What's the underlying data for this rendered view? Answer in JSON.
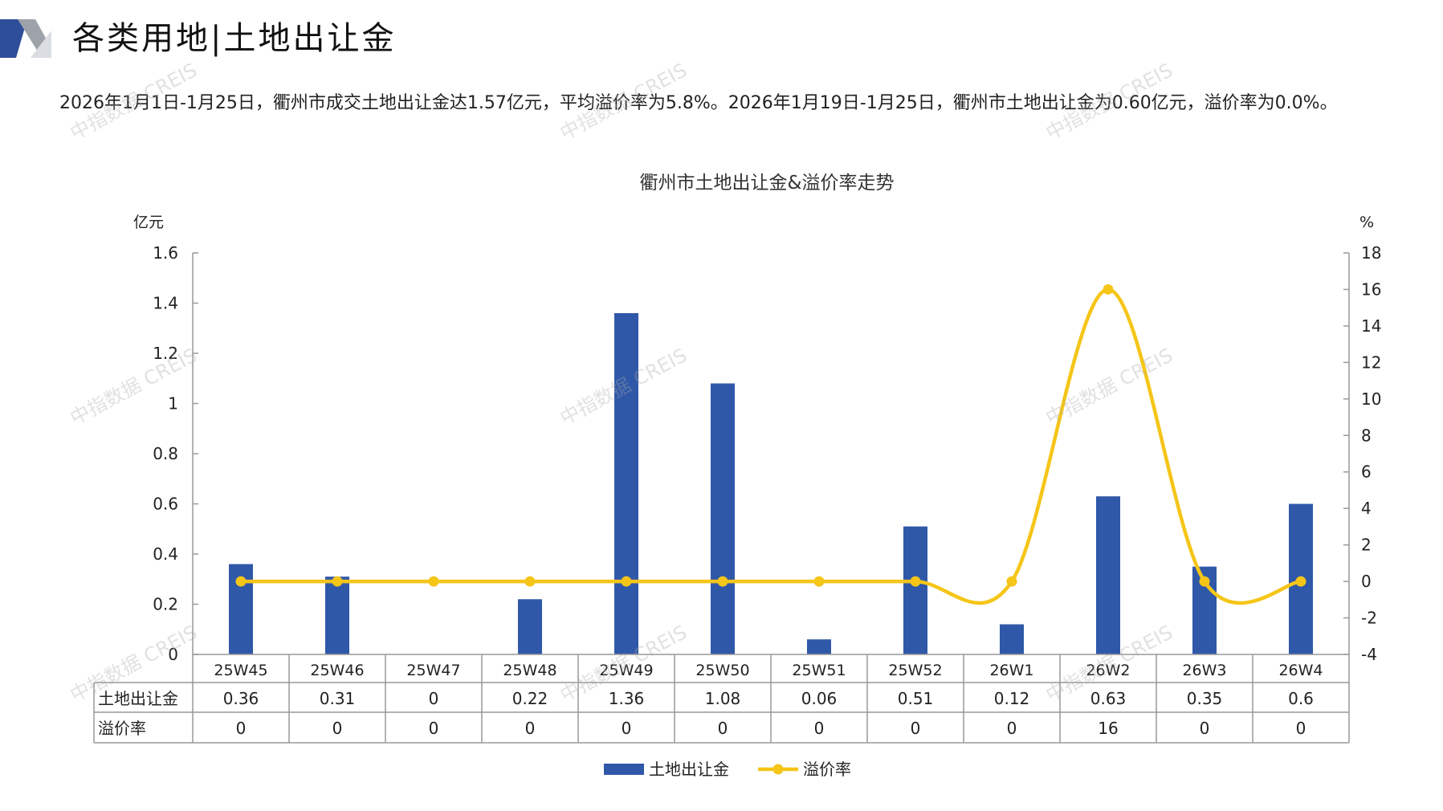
{
  "header": {
    "title": "各类用地|土地出让金"
  },
  "summary": {
    "text": "2026年1月1日-1月25日，衢州市成交土地出让金达1.57亿元，平均溢价率为5.8%。2026年1月19日-1月25日，衢州市土地出让金为0.60亿元，溢价率为0.0%。"
  },
  "watermark": {
    "text": "中指数据 CREIS"
  },
  "colors": {
    "bar": "#2F58A8",
    "line": "#F5C518",
    "axis": "#999999",
    "logo_dark": "#2F4E9A",
    "logo_grey": "#9EA3AA"
  },
  "chart_data": {
    "type": "bar",
    "title": "衢州市土地出让金&溢价率走势",
    "y_left_label": "亿元",
    "y_right_label": "%",
    "y_left_range": [
      0,
      1.6
    ],
    "y_left_ticks": [
      "1.6",
      "1.4",
      "1.2",
      "1",
      "0.8",
      "0.6",
      "0.4",
      "0.2",
      "0"
    ],
    "y_right_range": [
      -4,
      18
    ],
    "y_right_ticks": [
      "18",
      "16",
      "14",
      "12",
      "10",
      "8",
      "6",
      "4",
      "2",
      "0",
      "-2",
      "-4"
    ],
    "categories": [
      "25W45",
      "25W46",
      "25W47",
      "25W48",
      "25W49",
      "25W50",
      "25W51",
      "25W52",
      "26W1",
      "26W2",
      "26W3",
      "26W4"
    ],
    "series": [
      {
        "name": "土地出让金",
        "kind": "bar",
        "axis": "left",
        "values": [
          0.36,
          0.31,
          0,
          0.22,
          1.36,
          1.08,
          0.06,
          0.51,
          0.12,
          0.63,
          0.35,
          0.6
        ],
        "labels": [
          "0.36",
          "0.31",
          "0",
          "0.22",
          "1.36",
          "1.08",
          "0.06",
          "0.51",
          "0.12",
          "0.63",
          "0.35",
          "0.6"
        ]
      },
      {
        "name": "溢价率",
        "kind": "smooth-line",
        "axis": "right",
        "values": [
          0,
          0,
          0,
          0,
          0,
          0,
          0,
          0,
          0,
          16,
          0,
          0
        ],
        "labels": [
          "0",
          "0",
          "0",
          "0",
          "0",
          "0",
          "0",
          "0",
          "0",
          "16",
          "0",
          "0"
        ]
      }
    ],
    "legend": "bottom-center",
    "data_table": true
  }
}
